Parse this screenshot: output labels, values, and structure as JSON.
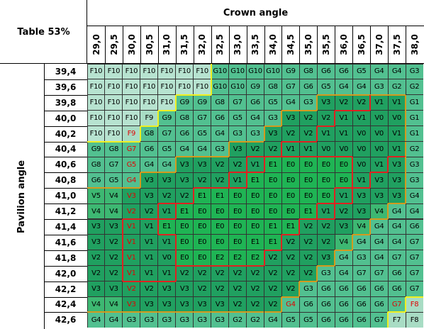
{
  "table_label": "Table 53%",
  "x_axis_title": "Crown angle",
  "y_axis_title": "Pavilion angle",
  "crown_angles": [
    "29,0",
    "29,5",
    "30,0",
    "30,5",
    "31,0",
    "31,5",
    "32,0",
    "32,5",
    "33,0",
    "33,5",
    "34,0",
    "34,5",
    "35,0",
    "35,5",
    "36,0",
    "36,5",
    "37,0",
    "37,5",
    "38,0"
  ],
  "pavilion_angles": [
    "39,4",
    "39,6",
    "39,8",
    "40,0",
    "40,2",
    "40,4",
    "40,6",
    "40,8",
    "41,0",
    "41,2",
    "41,4",
    "41,6",
    "41,8",
    "42,0",
    "42,2",
    "42,4",
    "42,6"
  ],
  "grades": [
    [
      "F10",
      "F10",
      "F10",
      "F10",
      "F10",
      "F10",
      "F10",
      "G10",
      "G10",
      "G10",
      "G10",
      "G9",
      "G8",
      "G6",
      "G6",
      "G5",
      "G4",
      "G4",
      "G3"
    ],
    [
      "F10",
      "F10",
      "F10",
      "F10",
      "F10",
      "F10",
      "F10",
      "G10",
      "G10",
      "G9",
      "G8",
      "G7",
      "G6",
      "G5",
      "G4",
      "G4",
      "G3",
      "G2",
      "G2"
    ],
    [
      "F10",
      "F10",
      "F10",
      "F10",
      "F10",
      "G9",
      "G9",
      "G8",
      "G7",
      "G6",
      "G5",
      "G4",
      "G3",
      "V3",
      "V2",
      "V2",
      "V1",
      "V1",
      "G1"
    ],
    [
      "F10",
      "F10",
      "F10",
      "F9",
      "G9",
      "G8",
      "G7",
      "G6",
      "G5",
      "G4",
      "G3",
      "V3",
      "V2",
      "V2",
      "V1",
      "V1",
      "V0",
      "V0",
      "G1"
    ],
    [
      "F10",
      "F10",
      "F9",
      "G8",
      "G7",
      "G6",
      "G5",
      "G4",
      "G3",
      "G3",
      "V3",
      "V2",
      "V2",
      "V1",
      "V1",
      "V0",
      "V0",
      "V1",
      "G1"
    ],
    [
      "G9",
      "G8",
      "G7",
      "G6",
      "G5",
      "G4",
      "G4",
      "G3",
      "V3",
      "V2",
      "V2",
      "V1",
      "V1",
      "V0",
      "V0",
      "V0",
      "V0",
      "V1",
      "G2"
    ],
    [
      "G8",
      "G7",
      "G5",
      "G4",
      "G4",
      "V3",
      "V3",
      "V2",
      "V2",
      "V1",
      "E1",
      "E0",
      "E0",
      "E0",
      "E0",
      "V0",
      "V1",
      "V3",
      "G3"
    ],
    [
      "G6",
      "G5",
      "G4",
      "V3",
      "V3",
      "V3",
      "V2",
      "V2",
      "V1",
      "E1",
      "E0",
      "E0",
      "E0",
      "E0",
      "E0",
      "V1",
      "V3",
      "V3",
      "G3"
    ],
    [
      "V5",
      "V4",
      "V3",
      "V3",
      "V2",
      "V2",
      "E1",
      "E1",
      "E0",
      "E0",
      "E0",
      "E0",
      "E0",
      "E0",
      "V1",
      "V3",
      "V3",
      "V3",
      "G4"
    ],
    [
      "V4",
      "V4",
      "V2",
      "V2",
      "V1",
      "E1",
      "E0",
      "E0",
      "E0",
      "E0",
      "E0",
      "E0",
      "E1",
      "V1",
      "V2",
      "V3",
      "V4",
      "G4",
      "G4"
    ],
    [
      "V3",
      "V3",
      "V1",
      "V1",
      "E1",
      "E0",
      "E0",
      "E0",
      "E0",
      "E0",
      "E1",
      "E1",
      "V2",
      "V2",
      "V3",
      "V4",
      "G4",
      "G4",
      "G6"
    ],
    [
      "V3",
      "V2",
      "V1",
      "V1",
      "V1",
      "E0",
      "E0",
      "E0",
      "E0",
      "E1",
      "E1",
      "V2",
      "V2",
      "V2",
      "V4",
      "G4",
      "G4",
      "G4",
      "G7"
    ],
    [
      "V2",
      "V2",
      "V1",
      "V1",
      "V0",
      "E0",
      "E0",
      "E2",
      "E2",
      "E2",
      "V2",
      "V2",
      "V2",
      "V3",
      "G4",
      "G3",
      "G4",
      "G7",
      "G7"
    ],
    [
      "V2",
      "V2",
      "V1",
      "V1",
      "V1",
      "V2",
      "V2",
      "V2",
      "V2",
      "V2",
      "V2",
      "V2",
      "V2",
      "G3",
      "G4",
      "G7",
      "G7",
      "G6",
      "G7"
    ],
    [
      "V3",
      "V3",
      "V2",
      "V2",
      "V3",
      "V3",
      "V2",
      "V2",
      "V2",
      "V2",
      "V2",
      "V2",
      "G3",
      "G6",
      "G6",
      "G6",
      "G6",
      "G6",
      "G7"
    ],
    [
      "V4",
      "V4",
      "V3",
      "V3",
      "V3",
      "V3",
      "V3",
      "V3",
      "V2",
      "V2",
      "V2",
      "G4",
      "G6",
      "G6",
      "G6",
      "G6",
      "G6",
      "G7",
      "F8"
    ],
    [
      "G4",
      "G4",
      "G3",
      "G3",
      "G3",
      "G3",
      "G3",
      "G3",
      "G2",
      "G2",
      "G4",
      "G5",
      "G5",
      "G6",
      "G6",
      "G6",
      "G7",
      "F7",
      "F8"
    ]
  ],
  "highlighted_cells": [
    [
      4,
      2
    ],
    [
      5,
      2
    ],
    [
      6,
      2
    ],
    [
      7,
      2
    ],
    [
      8,
      2
    ],
    [
      9,
      2
    ],
    [
      10,
      2
    ],
    [
      11,
      2
    ],
    [
      12,
      2
    ],
    [
      13,
      2
    ],
    [
      14,
      2
    ],
    [
      15,
      2
    ],
    [
      15,
      11
    ],
    [
      15,
      17
    ],
    [
      15,
      18
    ]
  ],
  "grade_colors": {
    "E": "#1fb454",
    "V": "#20a060",
    "Vlight": "#3db872",
    "G": "#52c090",
    "F": "#a8dcc4",
    "F10": "#b7e3d0",
    "light": "#e8f5ee",
    "highlight_text": "#e00000",
    "border_gold": "#d49a1e",
    "border_red": "#e02020",
    "border_yellow": "#f0f020"
  }
}
